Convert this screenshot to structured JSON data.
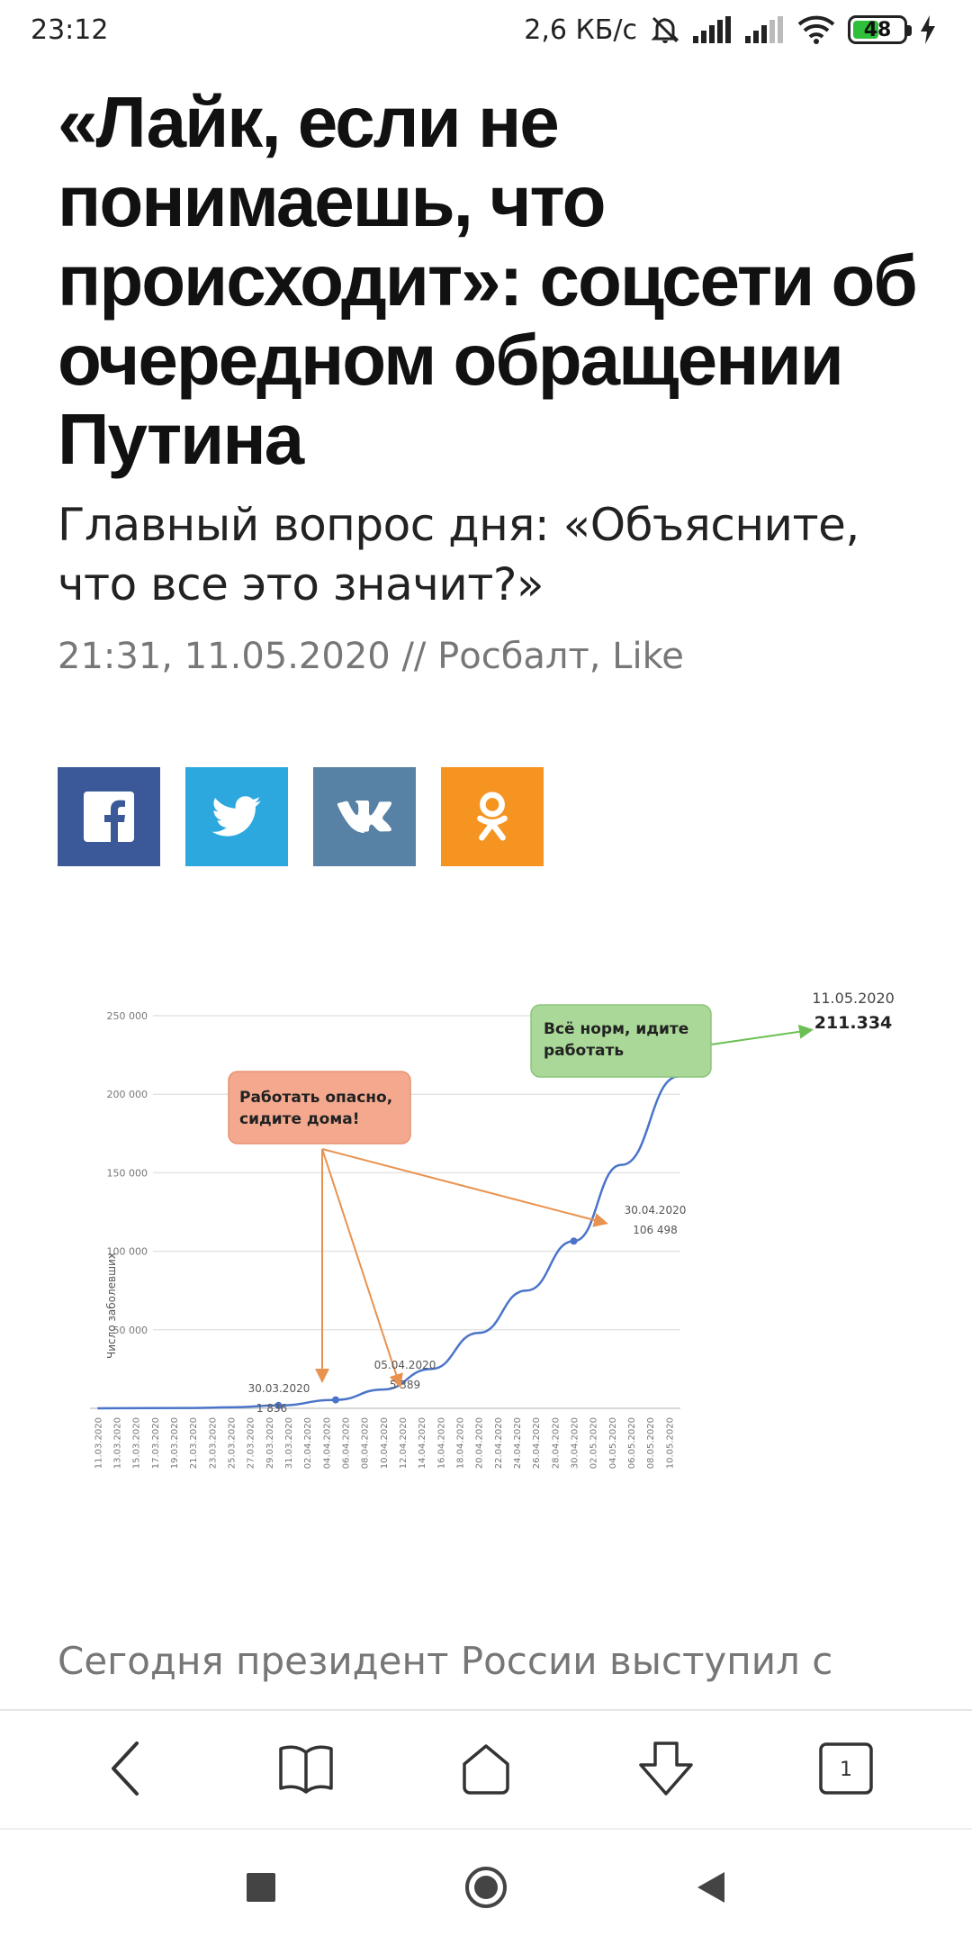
{
  "status": {
    "time": "23:12",
    "net_speed": "2,6 КБ/с",
    "battery": "48"
  },
  "article": {
    "headline": "«Лайк, если не понимаешь, что происходит»: соцсети об очередном обращении Путина",
    "subtitle": "Главный вопрос дня: «Объясните, что все это значит?»",
    "meta": "21:31, 11.05.2020 // Росбалт, Like",
    "lead": "Сегодня президент России выступил с"
  },
  "share": [
    {
      "network": "facebook",
      "icon": "facebook-icon",
      "color": "#3b5998"
    },
    {
      "network": "twitter",
      "icon": "twitter-icon",
      "color": "#2ca8df"
    },
    {
      "network": "vk",
      "icon": "vk-icon",
      "color": "#5881a6"
    },
    {
      "network": "odnoklassniki",
      "icon": "ok-icon",
      "color": "#f59420"
    }
  ],
  "chart_data": {
    "type": "line",
    "ylabel": "Число заболевших",
    "ylim": [
      0,
      250000
    ],
    "yticks": [
      "250 000",
      "200 000",
      "150 000",
      "100 000",
      "50 000"
    ],
    "ytick_values": [
      250000,
      200000,
      150000,
      100000,
      50000
    ],
    "xtick_labels": [
      "11.03.2020",
      "13.03.2020",
      "15.03.2020",
      "17.03.2020",
      "19.03.2020",
      "21.03.2020",
      "23.03.2020",
      "25.03.2020",
      "27.03.2020",
      "29.03.2020",
      "31.03.2020",
      "02.04.2020",
      "04.04.2020",
      "06.04.2020",
      "08.04.2020",
      "10.04.2020",
      "12.04.2020",
      "14.04.2020",
      "16.04.2020",
      "18.04.2020",
      "20.04.2020",
      "22.04.2020",
      "24.04.2020",
      "26.04.2020",
      "28.04.2020",
      "30.04.2020",
      "02.05.2020",
      "04.05.2020",
      "06.05.2020",
      "08.05.2020",
      "10.05.2020"
    ],
    "series": [
      {
        "color": "#4a74c9",
        "x": [
          "11.03.2020",
          "21.03.2020",
          "25.03.2020",
          "30.03.2020",
          "05.04.2020",
          "10.04.2020",
          "15.04.2020",
          "20.04.2020",
          "25.04.2020",
          "30.04.2020",
          "05.05.2020",
          "11.05.2020"
        ],
        "y": [
          20,
          250,
          650,
          1836,
          5389,
          12000,
          25000,
          48000,
          75000,
          106498,
          155000,
          211334
        ]
      }
    ],
    "point_labels": [
      {
        "date": "30.03.2020",
        "value": "1 836"
      },
      {
        "date": "05.04.2020",
        "value": "5 389"
      },
      {
        "date": "30.04.2020",
        "value": "106 498"
      },
      {
        "date": "11.05.2020",
        "value": "211.334"
      }
    ],
    "annotations": [
      {
        "text_line1": "Работать опасно,",
        "text_line2": "сидите дома!",
        "color": "#f4a98f"
      },
      {
        "text_line1": "Всё норм, идите",
        "text_line2": "работать",
        "color": "#a9d898"
      }
    ]
  }
}
